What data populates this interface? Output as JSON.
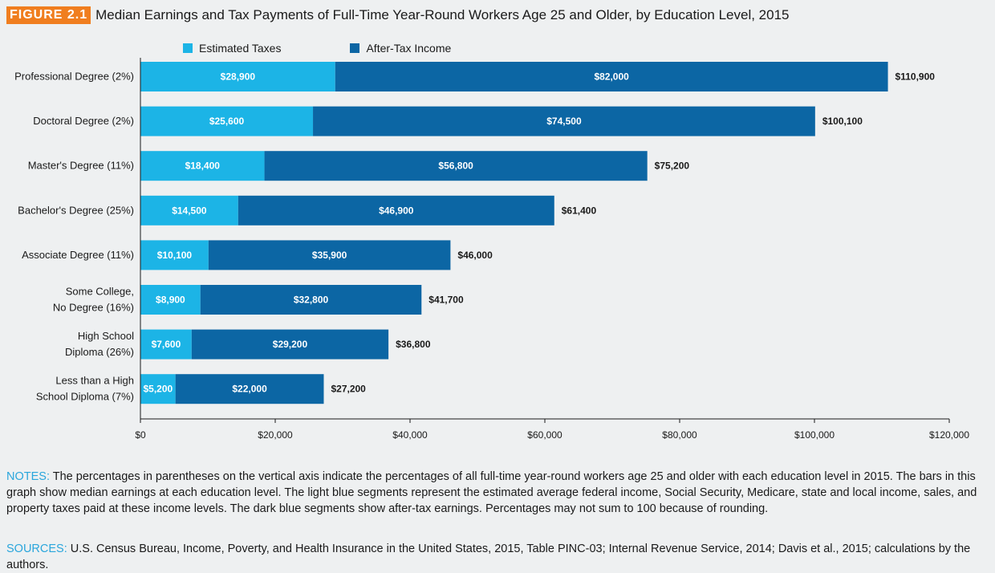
{
  "figure": {
    "tag": "FIGURE 2.1",
    "title": "Median Earnings and Tax Payments of Full-Time Year-Round Workers Age 25 and Older, by Education Level, 2015"
  },
  "legend": [
    {
      "name": "Estimated Taxes",
      "color": "#1cb4e6"
    },
    {
      "name": "After-Tax Income",
      "color": "#0c66a4"
    }
  ],
  "chart_data": {
    "type": "bar",
    "orientation": "horizontal",
    "stacked": true,
    "title": "Median Earnings and Tax Payments of Full-Time Year-Round Workers Age 25 and Older, by Education Level, 2015",
    "categories": [
      "Professional Degree (2%)",
      "Doctoral Degree (2%)",
      "Master's Degree (11%)",
      "Bachelor's Degree (25%)",
      "Associate Degree (11%)",
      "Some College, No Degree (16%)",
      "High School Diploma (26%)",
      "Less than a High School Diploma (7%)"
    ],
    "category_lines": [
      [
        "Professional Degree (2%)"
      ],
      [
        "Doctoral Degree (2%)"
      ],
      [
        "Master's Degree (11%)"
      ],
      [
        "Bachelor's Degree (25%)"
      ],
      [
        "Associate Degree (11%)"
      ],
      [
        "Some College,",
        "No Degree (16%)"
      ],
      [
        "High School",
        "Diploma (26%)"
      ],
      [
        "Less than a High",
        "School Diploma (7%)"
      ]
    ],
    "series": [
      {
        "name": "Estimated Taxes",
        "color": "#1cb4e6",
        "values": [
          28900,
          25600,
          18400,
          14500,
          10100,
          8900,
          7600,
          5200
        ],
        "labels": [
          "$28,900",
          "$25,600",
          "$18,400",
          "$14,500",
          "$10,100",
          "$8,900",
          "$7,600",
          "$5,200"
        ]
      },
      {
        "name": "After-Tax Income",
        "color": "#0c66a4",
        "values": [
          82000,
          74500,
          56800,
          46900,
          35900,
          32800,
          29200,
          22000
        ],
        "labels": [
          "$82,000",
          "$74,500",
          "$56,800",
          "$46,900",
          "$35,900",
          "$32,800",
          "$29,200",
          "$22,000"
        ]
      }
    ],
    "totals": [
      110900,
      100100,
      75200,
      61400,
      46000,
      41700,
      36800,
      27200
    ],
    "total_labels": [
      "$110,900",
      "$100,100",
      "$75,200",
      "$61,400",
      "$46,000",
      "$41,700",
      "$36,800",
      "$27,200"
    ],
    "xlim": [
      0,
      120000
    ],
    "xticks": [
      0,
      20000,
      40000,
      60000,
      80000,
      100000,
      120000
    ],
    "xtick_labels": [
      "$0",
      "$20,000",
      "$40,000",
      "$60,000",
      "$80,000",
      "$100,000",
      "$120,000"
    ],
    "grid": false,
    "legend_position": "top"
  },
  "notes": {
    "label": "NOTES:",
    "text": "The percentages in parentheses on the vertical axis indicate the percentages of all full-time year-round workers age 25 and older with each education level in 2015. The bars in this graph show median earnings at each education level. The light blue segments represent the estimated average federal income, Social Security, Medicare, state and local income, sales, and property taxes paid at these income levels. The dark blue segments show after-tax earnings. Percentages may not sum to 100 because of rounding."
  },
  "sources": {
    "label": "SOURCES:",
    "text": "U.S. Census Bureau, Income, Poverty, and Health Insurance in the United States, 2015, Table PINC-03; Internal Revenue Service, 2014; Davis et al., 2015; calculations by the authors."
  }
}
